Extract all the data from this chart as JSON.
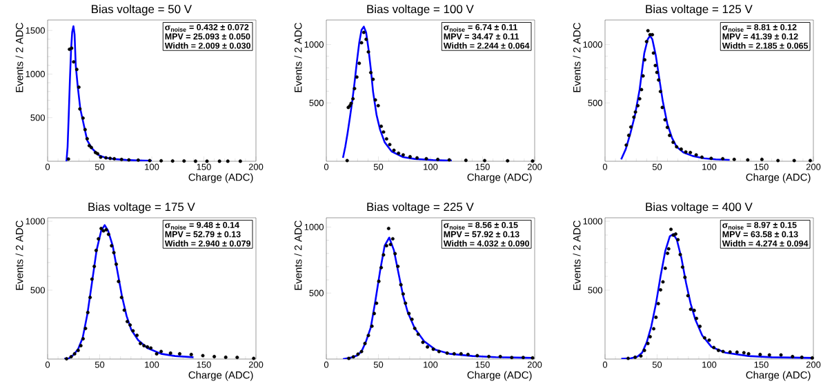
{
  "chart_data": [
    {
      "type": "scatter",
      "title": "Bias voltage = 50 V",
      "xlabel": "Charge (ADC)",
      "ylabel": "Events / 2 ADC",
      "xlim": [
        0,
        200
      ],
      "ylim": [
        0,
        1620
      ],
      "xticks": [
        0,
        50,
        100,
        150,
        200
      ],
      "yticks": [
        500,
        1000,
        1500
      ],
      "annotations": [
        "σ$_{noise}$ =  0.432 ± 0.072",
        "MPV =  25.093 ± 0.050",
        "Width =  2.009 ± 0.030"
      ],
      "series": [
        {
          "marker": "circle",
          "color": "#000000",
          "x": [
            20,
            21,
            23,
            25,
            28,
            30,
            31,
            34,
            36,
            38,
            40,
            42,
            46,
            48,
            51,
            56,
            60,
            64,
            71,
            78,
            87,
            98,
            109,
            120,
            131,
            142,
            153,
            165,
            173,
            185
          ],
          "values": [
            26,
            1284,
            1297,
            1140,
            1053,
            850,
            600,
            495,
            363,
            258,
            179,
            158,
            100,
            87,
            47,
            40,
            34,
            29,
            21,
            16,
            13,
            8,
            5,
            3,
            3,
            1,
            1,
            1,
            1,
            1
          ]
        },
        {
          "type": "line",
          "color": "#0000ff",
          "x": [
            18.1,
            19.2,
            20.3,
            21.4,
            22.5,
            23.6,
            24.8,
            25.9,
            27,
            29,
            31.4,
            33.6,
            38,
            42.4,
            49,
            55.7,
            64.5,
            75.6,
            86.6,
            100
          ],
          "values": [
            0,
            166,
            534,
            929,
            1271,
            1482,
            1548,
            1455,
            1100,
            850,
            600,
            480,
            240,
            150,
            70,
            40,
            25,
            15,
            10,
            6
          ]
        }
      ]
    },
    {
      "type": "scatter",
      "title": "Bias voltage = 100 V",
      "xlabel": "Charge (ADC)",
      "ylabel": "Events / 2 ADC",
      "xlim": [
        0,
        200
      ],
      "ylim": [
        0,
        1210
      ],
      "xticks": [
        0,
        50,
        100,
        150,
        200
      ],
      "yticks": [
        500,
        1000
      ],
      "annotations": [
        "σ$_{noise}$ =  6.74 ± 0.11",
        "MPV =  34.47 ± 0.11",
        "Width =  2.244 ± 0.064"
      ],
      "series": [
        {
          "marker": "circle",
          "color": "#000000",
          "x": [
            20,
            21.1,
            22.7,
            23.8,
            25.6,
            27.1,
            29.3,
            31.6,
            33.8,
            36,
            38.2,
            40.4,
            42.7,
            44.9,
            47.1,
            49.8,
            52.7,
            54.9,
            57.8,
            60.9,
            64.9,
            69.3,
            73.8,
            80.4,
            87.1,
            96,
            107,
            118,
            134,
            152,
            174,
            198
          ],
          "values": [
            6,
            461,
            476,
            496,
            535,
            623,
            721,
            839,
            1015,
            1104,
            1045,
            937,
            760,
            702,
            525,
            476,
            300,
            251,
            192,
            143,
            94,
            69,
            55,
            39,
            29,
            22,
            16,
            12,
            8,
            6,
            4,
            2
          ]
        },
        {
          "type": "line",
          "color": "#0000ff",
          "x": [
            16,
            18.2,
            20.4,
            22.7,
            24.9,
            27.1,
            29.3,
            31.6,
            33.8,
            36,
            38.2,
            40.4,
            42.7,
            44.9,
            48.2,
            51.6,
            56,
            62.7,
            73.8,
            84.9,
            102.7,
            120.4
          ],
          "values": [
            29,
            124,
            241,
            378,
            516,
            673,
            849,
            1016,
            1124,
            1153,
            1104,
            967,
            790,
            594,
            398,
            271,
            163,
            84,
            35,
            20,
            10,
            6
          ]
        }
      ]
    },
    {
      "type": "scatter",
      "title": "Bias voltage = 125 V",
      "xlabel": "Charge (ADC)",
      "ylabel": "Events / 2 ADC",
      "xlim": [
        0,
        200
      ],
      "ylim": [
        0,
        1210
      ],
      "xticks": [
        0,
        50,
        100,
        150,
        200
      ],
      "yticks": [
        500,
        1000
      ],
      "annotations": [
        "σ$_{noise}$ =  8.81 ± 0.12",
        "MPV =  41.39 ± 0.12",
        "Width =  2.185 ± 0.065"
      ],
      "series": [
        {
          "marker": "circle",
          "color": "#000000",
          "x": [
            20.4,
            22.8,
            24.8,
            27.7,
            29.2,
            31.5,
            33.2,
            35,
            36.5,
            38.1,
            39.9,
            41.2,
            43.2,
            45.4,
            46.5,
            48.3,
            49.8,
            51.4,
            53.2,
            55,
            57.6,
            59.8,
            62,
            65.4,
            68.7,
            73.1,
            77.5,
            81.9,
            87.5,
            93,
            101.9,
            113,
            124,
            137,
            150.6,
            166,
            181.6,
            197
          ],
          "values": [
            139,
            222,
            294,
            378,
            422,
            476,
            535,
            614,
            731,
            869,
            1025,
            1118,
            1084,
            1084,
            927,
            820,
            761,
            696,
            598,
            461,
            355,
            290,
            222,
            163,
            124,
            104,
            80,
            75,
            55,
            35,
            25,
            22,
            16,
            12,
            16,
            6,
            6,
            6
          ]
        },
        {
          "type": "line",
          "color": "#0000ff",
          "x": [
            15.5,
            19.9,
            24.4,
            28.8,
            33.2,
            37.7,
            41,
            43.2,
            45.4,
            48.7,
            52,
            55.4,
            59.8,
            64.2,
            68.7,
            75.3,
            84.2,
            95.2,
            106.3,
            119.6
          ],
          "values": [
            16,
            104,
            241,
            398,
            614,
            927,
            1045,
            1075,
            1045,
            908,
            712,
            516,
            320,
            202,
            124,
            75,
            45,
            25,
            16,
            12
          ]
        }
      ]
    },
    {
      "type": "scatter",
      "title": "Bias voltage = 175 V",
      "xlabel": "Charge (ADC)",
      "ylabel": "Events / 2 ADC",
      "xlim": [
        0,
        200
      ],
      "ylim": [
        0,
        1025
      ],
      "xticks": [
        0,
        50,
        100,
        150,
        200
      ],
      "yticks": [
        500,
        1000
      ],
      "annotations": [
        "σ$_{noise}$ =  9.48 ± 0.14",
        "MPV =  52.79 ± 0.13",
        "Width =  2.940 ± 0.079"
      ],
      "series": [
        {
          "marker": "circle",
          "color": "#000000",
          "x": [
            18.2,
            22.6,
            25.9,
            29.3,
            31.9,
            34.1,
            36.4,
            38.6,
            40.8,
            42.6,
            44.8,
            46.6,
            48.8,
            51.4,
            53.7,
            56.3,
            58.5,
            61.4,
            63.6,
            65.9,
            68.1,
            71,
            73.6,
            76.5,
            79.2,
            82,
            85.8,
            89.1,
            92.5,
            95.8,
            99.1,
            104.7,
            109,
            118,
            126.8,
            137.9,
            149,
            160,
            171,
            182,
            197.8
          ],
          "values": [
            2,
            17,
            38,
            63,
            97,
            147,
            222,
            338,
            447,
            580,
            672,
            788,
            872,
            947,
            930,
            938,
            905,
            822,
            772,
            688,
            563,
            447,
            355,
            272,
            247,
            205,
            172,
            113,
            97,
            88,
            80,
            38,
            55,
            43,
            38,
            33,
            25,
            18,
            13,
            12,
            5
          ]
        },
        {
          "type": "line",
          "color": "#0000ff",
          "x": [
            16,
            20.4,
            24.8,
            29.3,
            33.7,
            38.1,
            42.6,
            47,
            51.4,
            54.8,
            58.1,
            62.5,
            67,
            71.4,
            75.8,
            80.3,
            86.9,
            95.8,
            109,
            122.4,
            140
          ],
          "values": [
            2,
            5,
            30,
            72,
            155,
            322,
            555,
            788,
            930,
            972,
            930,
            822,
            638,
            455,
            313,
            213,
            138,
            80,
            38,
            22,
            13
          ]
        }
      ]
    },
    {
      "type": "scatter",
      "title": "Bias voltage = 225 V",
      "xlabel": "Charge (ADC)",
      "ylabel": "Events / 2 ADC",
      "xlim": [
        0,
        200
      ],
      "ylim": [
        0,
        1070
      ],
      "xticks": [
        0,
        50,
        100,
        150,
        200
      ],
      "yticks": [
        500,
        1000
      ],
      "annotations": [
        "σ$_{noise}$ =  8.56 ± 0.15",
        "MPV =  57.92 ± 0.13",
        "Width =  4.032 ± 0.090"
      ],
      "series": [
        {
          "marker": "circle",
          "color": "#000000",
          "x": [
            21.6,
            26,
            30.4,
            33.8,
            37.1,
            40.4,
            43.8,
            46,
            48.2,
            50.4,
            52.7,
            54.9,
            57.8,
            59.8,
            61.6,
            63.8,
            66,
            68.7,
            71.6,
            73.8,
            76,
            79.3,
            82.2,
            84.9,
            88.2,
            92.7,
            97.1,
            102.7,
            108.2,
            116,
            122.7,
            129.3,
            136,
            144.9,
            156,
            167,
            178,
            189,
            198
          ],
          "values": [
            5,
            17,
            37,
            57,
            118,
            179,
            249,
            345,
            423,
            589,
            693,
            789,
            859,
            989,
            868,
            911,
            798,
            702,
            563,
            493,
            423,
            345,
            301,
            232,
            188,
            127,
            92,
            75,
            57,
            45,
            40,
            40,
            35,
            26,
            19,
            19,
            12,
            12,
            9
          ]
        },
        {
          "type": "line",
          "color": "#0000ff",
          "x": [
            16,
            22.7,
            29.3,
            33.8,
            38.2,
            42.7,
            47.1,
            51.6,
            56,
            60.4,
            64.9,
            69.3,
            73.8,
            78.2,
            84.9,
            93.8,
            104.9,
            118.2,
            140.4,
            162.7,
            198
          ],
          "values": [
            0,
            9,
            26,
            57,
            136,
            240,
            441,
            667,
            859,
            920,
            824,
            650,
            476,
            354,
            232,
            136,
            70,
            40,
            23,
            14,
            9
          ]
        }
      ]
    },
    {
      "type": "scatter",
      "title": "Bias voltage = 400 V",
      "xlabel": "Charge (ADC)",
      "ylabel": "Events / 2 ADC",
      "xlim": [
        0,
        200
      ],
      "ylim": [
        0,
        1025
      ],
      "xticks": [
        0,
        50,
        100,
        150,
        200
      ],
      "yticks": [
        500,
        1000
      ],
      "annotations": [
        "σ$_{noise}$ =  8.97 ± 0.15",
        "MPV =  63.58 ± 0.13",
        "Width =  4.274 ± 0.094"
      ],
      "series": [
        {
          "marker": "circle",
          "color": "#000000",
          "x": [
            22.2,
            28.9,
            34.4,
            37.8,
            41.1,
            43.3,
            46.7,
            48.9,
            51.1,
            53.3,
            55.6,
            57.8,
            60,
            61.1,
            63.3,
            65.6,
            67.8,
            70,
            72.2,
            74.4,
            76.7,
            79.6,
            82.2,
            85.6,
            87.8,
            91.1,
            95.6,
            100,
            104.4,
            108.9,
            113.3,
            120,
            126.7,
            133.3,
            137.8,
            148.9,
            157.8,
            168.9,
            180,
            188.9,
            198.9
          ],
          "values": [
            5,
            13,
            22,
            63,
            113,
            162,
            220,
            303,
            402,
            502,
            560,
            659,
            767,
            800,
            941,
            899,
            907,
            866,
            758,
            667,
            593,
            460,
            361,
            353,
            295,
            237,
            154,
            137,
            84,
            63,
            55,
            51,
            50,
            46,
            38,
            33,
            30,
            30,
            18,
            13,
            8
          ]
        },
        {
          "type": "line",
          "color": "#0000ff",
          "x": [
            15.6,
            24.4,
            31.1,
            35.6,
            40,
            44.4,
            48.9,
            53.3,
            57.8,
            62.2,
            65.6,
            68.9,
            73.3,
            77.8,
            82.2,
            86.7,
            93.3,
            102.2,
            115.6,
            137.8,
            160,
            200
          ],
          "values": [
            2,
            5,
            17,
            46,
            121,
            237,
            402,
            601,
            783,
            891,
            907,
            866,
            734,
            551,
            402,
            286,
            171,
            88,
            46,
            22,
            13,
            8
          ]
        }
      ]
    }
  ]
}
